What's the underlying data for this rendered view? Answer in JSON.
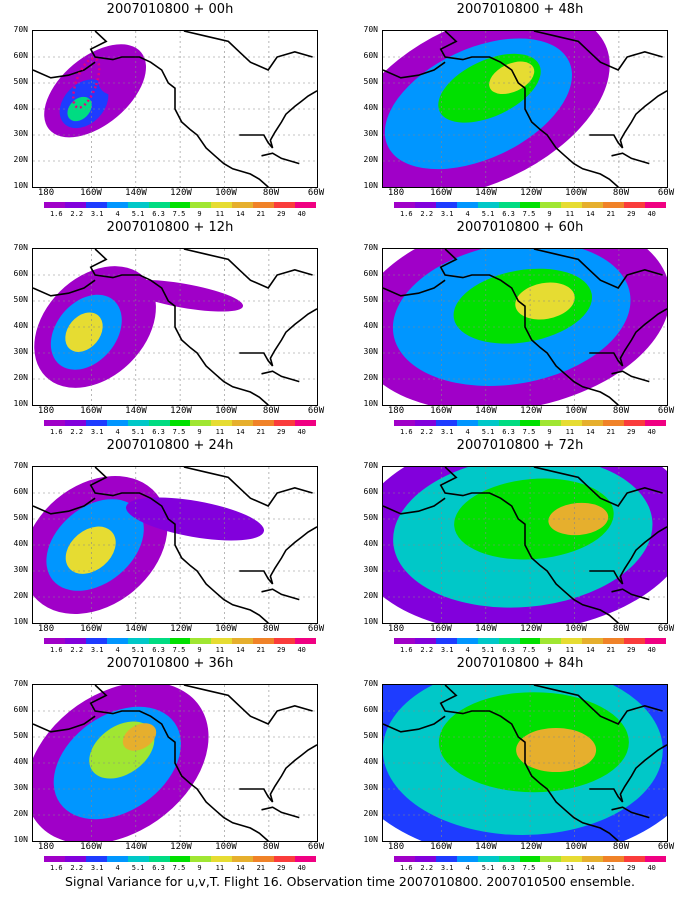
{
  "panels": [
    {
      "title": "2007010800 + 00h",
      "column": 0,
      "row": 0
    },
    {
      "title": "2007010800 + 12h",
      "column": 0,
      "row": 1
    },
    {
      "title": "2007010800 + 24h",
      "column": 0,
      "row": 2
    },
    {
      "title": "2007010800 + 36h",
      "column": 0,
      "row": 3
    },
    {
      "title": "2007010800 + 48h",
      "column": 1,
      "row": 0
    },
    {
      "title": "2007010800 + 60h",
      "column": 1,
      "row": 1
    },
    {
      "title": "2007010800 + 72h",
      "column": 1,
      "row": 2
    },
    {
      "title": "2007010800 + 84h",
      "column": 1,
      "row": 3
    }
  ],
  "latitude_labels": [
    "70N",
    "60N",
    "50N",
    "40N",
    "30N",
    "20N",
    "10N"
  ],
  "longitude_labels": [
    "180",
    "160W",
    "140W",
    "120W",
    "100W",
    "80W",
    "60W"
  ],
  "colorbar": {
    "labels": [
      "1.6",
      "2.2",
      "3.1",
      "4",
      "5.1",
      "6.3",
      "7.5",
      "9",
      "11",
      "14",
      "21",
      "29",
      "40"
    ],
    "colors": [
      "#a000c8",
      "#8200dc",
      "#1e3cff",
      "#0096ff",
      "#00c8c8",
      "#00dc82",
      "#00e000",
      "#a0e632",
      "#e6dc32",
      "#e6af2d",
      "#f08228",
      "#fa3c3c",
      "#f00082"
    ]
  },
  "caption": "Signal Variance for u,v,T. Flight 16. Observation time 2007010800. 2007010500 ensemble."
}
